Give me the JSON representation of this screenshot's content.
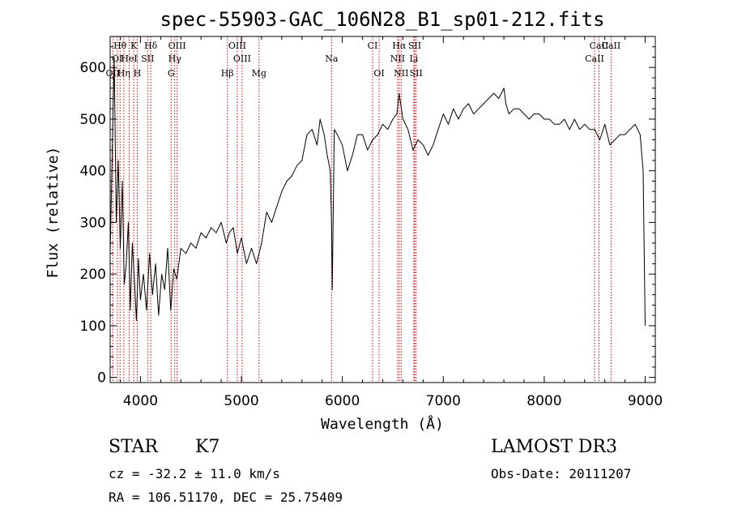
{
  "chart_data": {
    "type": "line",
    "title": "spec-55903-GAC_106N28_B1_sp01-212.fits",
    "xlabel": "Wavelength (Å)",
    "ylabel": "Flux (relative)",
    "xlim": [
      3700,
      9100
    ],
    "ylim": [
      -10,
      660
    ],
    "xticks": [
      4000,
      5000,
      6000,
      7000,
      8000,
      9000
    ],
    "xtick_labels": [
      "4000",
      "5000",
      "6000",
      "7000",
      "8000",
      "9000"
    ],
    "yticks": [
      0,
      100,
      200,
      300,
      400,
      500,
      600
    ],
    "ytick_labels": [
      "0",
      "100",
      "200",
      "300",
      "400",
      "500",
      "600"
    ],
    "line_color": "#000000",
    "marker_color": "#cc0000",
    "series": [
      {
        "name": "flux",
        "x": [
          3700,
          3720,
          3740,
          3760,
          3780,
          3800,
          3820,
          3840,
          3860,
          3880,
          3900,
          3920,
          3940,
          3960,
          3980,
          4000,
          4030,
          4060,
          4090,
          4120,
          4150,
          4180,
          4210,
          4240,
          4270,
          4300,
          4330,
          4360,
          4400,
          4450,
          4500,
          4550,
          4600,
          4650,
          4700,
          4750,
          4800,
          4850,
          4880,
          4920,
          4960,
          5000,
          5050,
          5100,
          5150,
          5200,
          5250,
          5300,
          5350,
          5400,
          5450,
          5500,
          5550,
          5600,
          5650,
          5700,
          5750,
          5780,
          5820,
          5850,
          5880,
          5893,
          5900,
          5920,
          5950,
          6000,
          6050,
          6100,
          6150,
          6200,
          6250,
          6300,
          6350,
          6400,
          6450,
          6500,
          6540,
          6563,
          6600,
          6650,
          6700,
          6750,
          6800,
          6850,
          6900,
          6950,
          7000,
          7050,
          7100,
          7150,
          7200,
          7250,
          7300,
          7350,
          7400,
          7450,
          7500,
          7550,
          7600,
          7620,
          7650,
          7700,
          7750,
          7800,
          7850,
          7900,
          7950,
          8000,
          8050,
          8100,
          8150,
          8200,
          8250,
          8300,
          8350,
          8400,
          8450,
          8500,
          8550,
          8600,
          8650,
          8700,
          8750,
          8800,
          8850,
          8900,
          8950,
          8980,
          9000
        ],
        "y": [
          240,
          430,
          620,
          300,
          420,
          250,
          380,
          180,
          220,
          300,
          130,
          260,
          190,
          110,
          230,
          150,
          200,
          130,
          240,
          160,
          220,
          120,
          200,
          170,
          250,
          130,
          210,
          190,
          250,
          240,
          260,
          250,
          280,
          270,
          290,
          280,
          300,
          260,
          280,
          290,
          240,
          270,
          220,
          250,
          220,
          260,
          320,
          300,
          330,
          360,
          380,
          390,
          410,
          420,
          470,
          480,
          450,
          500,
          470,
          430,
          400,
          300,
          170,
          480,
          470,
          450,
          400,
          430,
          470,
          470,
          440,
          460,
          470,
          490,
          480,
          500,
          510,
          550,
          500,
          480,
          440,
          460,
          450,
          430,
          450,
          480,
          510,
          490,
          520,
          500,
          520,
          530,
          510,
          520,
          530,
          540,
          550,
          540,
          560,
          530,
          510,
          520,
          520,
          510,
          500,
          510,
          510,
          500,
          500,
          490,
          490,
          500,
          480,
          500,
          480,
          490,
          480,
          480,
          460,
          490,
          450,
          460,
          470,
          470,
          480,
          490,
          470,
          400,
          100
        ]
      }
    ],
    "lines": [
      {
        "label": "Hθ",
        "wavelength": 3798
      },
      {
        "label": "K",
        "wavelength": 3934
      },
      {
        "label": "Hδ",
        "wavelength": 4102
      },
      {
        "label": "OIII",
        "wavelength": 4363
      },
      {
        "label": "OIII",
        "wavelength": 4959
      },
      {
        "label": "CI",
        "wavelength": 6300
      },
      {
        "label": "Hα",
        "wavelength": 6563
      },
      {
        "label": "SII",
        "wavelength": 6717
      },
      {
        "label": "CaII",
        "wavelength": 8542
      },
      {
        "label": "OI",
        "wavelength": 3771
      },
      {
        "label": "HeI",
        "wavelength": 3889
      },
      {
        "label": "SII",
        "wavelength": 4072
      },
      {
        "label": "Hγ",
        "wavelength": 4340
      },
      {
        "label": "OIII",
        "wavelength": 5007
      },
      {
        "label": "Na",
        "wavelength": 5893
      },
      {
        "label": "NII",
        "wavelength": 6548
      },
      {
        "label": "Li",
        "wavelength": 6708
      },
      {
        "label": "CaII",
        "wavelength": 8498
      },
      {
        "label": "OII",
        "wavelength": 3727
      },
      {
        "label": "Hη",
        "wavelength": 3835
      },
      {
        "label": "H",
        "wavelength": 3969
      },
      {
        "label": "G",
        "wavelength": 4304
      },
      {
        "label": "Hβ",
        "wavelength": 4861
      },
      {
        "label": "Mg",
        "wavelength": 5175
      },
      {
        "label": "OI",
        "wavelength": 6364
      },
      {
        "label": "NII",
        "wavelength": 6583
      },
      {
        "label": "SII",
        "wavelength": 6731
      },
      {
        "label": "CaII",
        "wavelength": 8662
      }
    ]
  },
  "info": {
    "class_label": "STAR",
    "subclass": "K7",
    "survey": "LAMOST DR3",
    "cz": "cz = -32.2 ± 11.0 km/s",
    "obs_date": "Obs-Date: 20111207",
    "coords": "RA = 106.51170, DEC =  25.75409"
  }
}
